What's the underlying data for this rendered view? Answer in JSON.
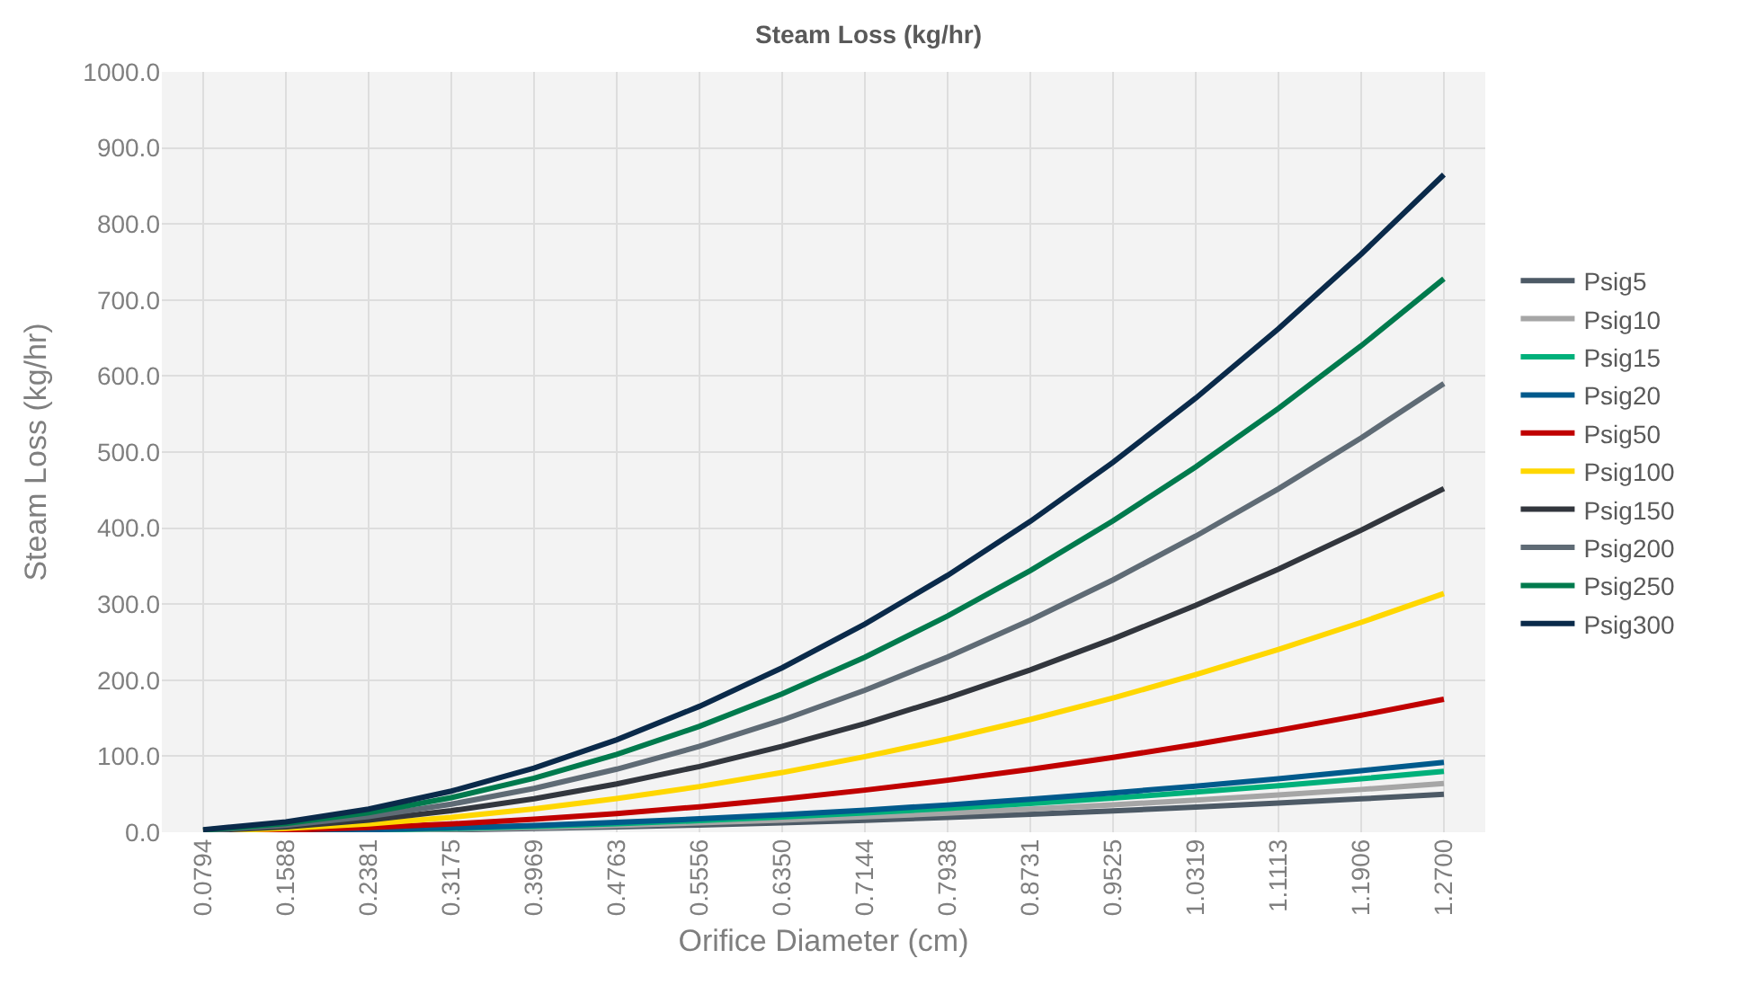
{
  "chart_data": {
    "type": "line",
    "title": "Steam Loss (kg/hr)",
    "xlabel": "Orifice Diameter (cm)",
    "ylabel": "Steam Loss (kg/hr)",
    "categories": [
      "0.0794",
      "0.1588",
      "0.2381",
      "0.3175",
      "0.3969",
      "0.4763",
      "0.5556",
      "0.6350",
      "0.7144",
      "0.7938",
      "0.8731",
      "0.9525",
      "1.0319",
      "1.1113",
      "1.1906",
      "1.2700"
    ],
    "ylim": [
      0,
      1000
    ],
    "yticks": [
      {
        "value": 0,
        "label": "0.0"
      },
      {
        "value": 100,
        "label": "100.0"
      },
      {
        "value": 200,
        "label": "200.0"
      },
      {
        "value": 300,
        "label": "300.0"
      },
      {
        "value": 400,
        "label": "400.0"
      },
      {
        "value": 500,
        "label": "500.0"
      },
      {
        "value": 600,
        "label": "600.0"
      },
      {
        "value": 700,
        "label": "700.0"
      },
      {
        "value": 800,
        "label": "800.0"
      },
      {
        "value": 900,
        "label": "900.0"
      },
      {
        "value": 1000,
        "label": "1000.0"
      }
    ],
    "grid": true,
    "legend": "right",
    "marker": "none",
    "line_style": "solid",
    "series": [
      {
        "name": "Psig5",
        "color": "#4d5a66",
        "values": [
          0.2,
          0.8,
          1.8,
          3.1,
          4.9,
          7.0,
          9.6,
          12.5,
          15.8,
          19.5,
          23.6,
          28.1,
          33.0,
          38.3,
          43.9,
          50
        ]
      },
      {
        "name": "Psig10",
        "color": "#a6a6a6",
        "values": [
          0.3,
          1,
          2.3,
          4,
          6.3,
          9,
          12.3,
          16,
          20.3,
          25,
          30.3,
          36,
          42.3,
          49,
          56.3,
          64
        ]
      },
      {
        "name": "Psig15",
        "color": "#00b07a",
        "values": [
          0.3,
          1.3,
          2.8,
          5,
          7.8,
          11.3,
          15.3,
          20,
          25.3,
          31.3,
          37.8,
          45,
          52.8,
          61.3,
          70.3,
          80
        ]
      },
      {
        "name": "Psig20",
        "color": "#005a8c",
        "values": [
          0.4,
          1.4,
          3.2,
          5.8,
          9.0,
          12.9,
          17.6,
          23.0,
          29.1,
          35.9,
          43.5,
          51.8,
          60.7,
          70.4,
          80.9,
          92
        ]
      },
      {
        "name": "Psig50",
        "color": "#c00000",
        "values": [
          0.7,
          2.7,
          6.2,
          10.9,
          17.1,
          24.6,
          33.5,
          43.8,
          55.4,
          68.4,
          82.7,
          98.4,
          115.5,
          134.0,
          153.8,
          175
        ]
      },
      {
        "name": "Psig100",
        "color": "#ffd700",
        "values": [
          1.2,
          4.9,
          11.0,
          19.6,
          30.7,
          44.2,
          60.1,
          78.5,
          99.4,
          122.7,
          148.4,
          176.6,
          207.3,
          240.4,
          276.0,
          314
        ]
      },
      {
        "name": "Psig150",
        "color": "#32363d",
        "values": [
          1.8,
          7.1,
          15.9,
          28.3,
          44.1,
          63.6,
          86.5,
          113.0,
          143.0,
          176.6,
          213.6,
          254.3,
          298.4,
          346.1,
          397.3,
          452
        ]
      },
      {
        "name": "Psig200",
        "color": "#5f6b75",
        "values": [
          2.3,
          9.2,
          20.7,
          36.9,
          57.6,
          83.0,
          112.9,
          147.5,
          186.7,
          230.5,
          278.9,
          331.9,
          389.5,
          451.7,
          518.6,
          590
        ]
      },
      {
        "name": "Psig250",
        "color": "#007a4d",
        "values": [
          2.8,
          11.4,
          25.6,
          45.5,
          71.1,
          102.4,
          139.3,
          182.0,
          230.3,
          284.4,
          344.1,
          409.5,
          480.6,
          557.4,
          639.8,
          728
        ]
      },
      {
        "name": "Psig300",
        "color": "#0a2a4a",
        "values": [
          3.4,
          13.5,
          30.4,
          54.1,
          84.5,
          121.6,
          165.6,
          216.3,
          273.7,
          337.9,
          408.9,
          486.6,
          571.0,
          662.3,
          760.3,
          865
        ]
      }
    ]
  }
}
